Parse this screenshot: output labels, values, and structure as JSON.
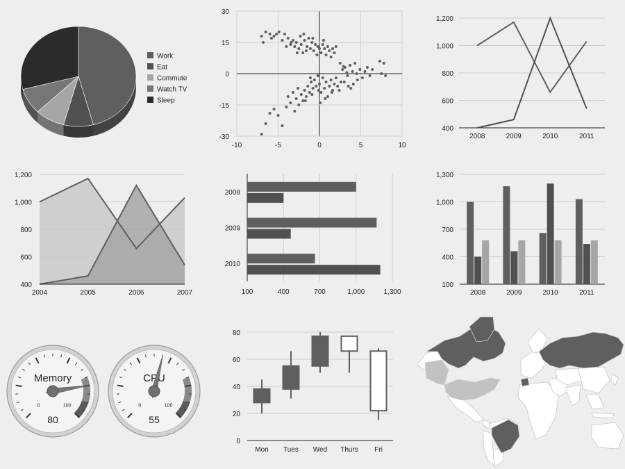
{
  "palette": {
    "series1": "#5f5f5f",
    "series2": "#505050",
    "series3": "#a6a6a6",
    "series4": "#777777",
    "series5": "#2b2b2b",
    "grid": "#cfcfcf",
    "axis": "#222222"
  },
  "chart_data": [
    {
      "id": "pie",
      "type": "pie",
      "style": "3d",
      "legend_position": "right",
      "slices": [
        {
          "label": "Work",
          "value": 11
        },
        {
          "label": "Eat",
          "value": 2
        },
        {
          "label": "Commute",
          "value": 2
        },
        {
          "label": "Watch TV",
          "value": 2
        },
        {
          "label": "Sleep",
          "value": 7
        }
      ]
    },
    {
      "id": "scatter",
      "type": "scatter",
      "xlim": [
        -10,
        10
      ],
      "ylim": [
        -30,
        30
      ],
      "xticks": [
        -10,
        -5,
        0,
        5,
        10
      ],
      "yticks": [
        -30,
        -15,
        0,
        15,
        30
      ],
      "grid": true,
      "points": [
        [
          -7,
          18
        ],
        [
          -6.8,
          15
        ],
        [
          -6.5,
          20
        ],
        [
          -6,
          19
        ],
        [
          -5.8,
          17
        ],
        [
          -5.5,
          18
        ],
        [
          -5.2,
          19
        ],
        [
          -4.9,
          20
        ],
        [
          -4.5,
          16
        ],
        [
          -4.2,
          19
        ],
        [
          -3.8,
          17
        ],
        [
          -3.5,
          14
        ],
        [
          -3.2,
          16
        ],
        [
          -3,
          13
        ],
        [
          -2.8,
          15
        ],
        [
          -2.5,
          12
        ],
        [
          -2.2,
          14
        ],
        [
          -2,
          10
        ],
        [
          -1.8,
          16
        ],
        [
          -1.5,
          13
        ],
        [
          -1.3,
          17
        ],
        [
          -1.1,
          12
        ],
        [
          -0.9,
          15
        ],
        [
          -0.7,
          11
        ],
        [
          -0.5,
          14
        ],
        [
          -0.3,
          9
        ],
        [
          -0.2,
          13
        ],
        [
          0,
          12
        ],
        [
          0.2,
          10
        ],
        [
          0.4,
          14
        ],
        [
          0.6,
          12
        ],
        [
          0.8,
          9
        ],
        [
          1,
          13
        ],
        [
          1.2,
          11
        ],
        [
          1.4,
          8
        ],
        [
          1.6,
          12
        ],
        [
          1.8,
          10
        ],
        [
          -2.3,
          18
        ],
        [
          -3.4,
          15
        ],
        [
          -1.6,
          11
        ],
        [
          -0.8,
          17
        ],
        [
          0.5,
          16
        ],
        [
          2,
          13
        ],
        [
          -4,
          13
        ],
        [
          -2.7,
          10
        ],
        [
          -1.9,
          19
        ],
        [
          2.5,
          5
        ],
        [
          2.8,
          2
        ],
        [
          3.1,
          3
        ],
        [
          3.4,
          -1
        ],
        [
          3.7,
          4
        ],
        [
          4,
          1
        ],
        [
          4.3,
          5
        ],
        [
          4.6,
          -3
        ],
        [
          4.9,
          2
        ],
        [
          5.2,
          -2
        ],
        [
          5.5,
          1
        ],
        [
          5.8,
          3
        ],
        [
          6.1,
          -1
        ],
        [
          6.4,
          2
        ],
        [
          7.3,
          6
        ],
        [
          7.5,
          0
        ],
        [
          7.8,
          5
        ],
        [
          8,
          -1
        ],
        [
          2.6,
          -4
        ],
        [
          3.3,
          0.5
        ],
        [
          4.1,
          -5
        ],
        [
          3.8,
          -7
        ],
        [
          2.9,
          3.5
        ],
        [
          4.5,
          0
        ],
        [
          -7,
          -29
        ],
        [
          -6.5,
          -24
        ],
        [
          -6,
          -19
        ],
        [
          -5.5,
          -17
        ],
        [
          -5,
          -20
        ],
        [
          -4.5,
          -25
        ],
        [
          -4,
          -16
        ],
        [
          -3.5,
          -14
        ],
        [
          -3,
          -18
        ],
        [
          -2.8,
          -12
        ],
        [
          -2.5,
          -15
        ],
        [
          -2.2,
          -10
        ],
        [
          -2,
          -13
        ],
        [
          -1.8,
          -8
        ],
        [
          -1.6,
          -11
        ],
        [
          -1.4,
          -6
        ],
        [
          -1.2,
          -9
        ],
        [
          -1,
          -4
        ],
        [
          -0.8,
          -7
        ],
        [
          -0.6,
          -3
        ],
        [
          -0.4,
          -6
        ],
        [
          -0.2,
          -1
        ],
        [
          0,
          -5
        ],
        [
          0.2,
          -9
        ],
        [
          0.4,
          -2
        ],
        [
          0.6,
          -7
        ],
        [
          0.8,
          -4
        ],
        [
          1,
          -11
        ],
        [
          1.2,
          -6
        ],
        [
          1.4,
          -3
        ],
        [
          1.6,
          -8
        ],
        [
          1.8,
          -5
        ],
        [
          2,
          -2
        ],
        [
          2.2,
          -6
        ],
        [
          -3.2,
          -9
        ],
        [
          -2.6,
          -7
        ],
        [
          -1.7,
          -13
        ],
        [
          -0.9,
          -10
        ],
        [
          0.1,
          -14
        ],
        [
          0.7,
          -12
        ],
        [
          1.5,
          -9
        ],
        [
          2.4,
          -8
        ],
        [
          3,
          -4
        ],
        [
          3.5,
          -6
        ],
        [
          -3.8,
          -11
        ],
        [
          -1.1,
          -2
        ],
        [
          -0.1,
          -8
        ]
      ]
    },
    {
      "id": "line",
      "type": "line",
      "categories": [
        "2008",
        "2009",
        "2010",
        "2011"
      ],
      "series": [
        {
          "values": [
            1000,
            1170,
            660,
            1030
          ]
        },
        {
          "values": [
            400,
            460,
            1200,
            540
          ]
        }
      ],
      "ylim": [
        400,
        1200
      ],
      "yticks": [
        "400",
        "600",
        "800",
        "1,000",
        "1,200"
      ],
      "grid": true
    },
    {
      "id": "area",
      "type": "area",
      "categories": [
        "2004",
        "2005",
        "2006",
        "2007"
      ],
      "series": [
        {
          "values": [
            1000,
            1170,
            660,
            1030
          ]
        },
        {
          "values": [
            400,
            460,
            1120,
            540
          ]
        }
      ],
      "ylim": [
        400,
        1200
      ],
      "yticks": [
        "400",
        "600",
        "800",
        "1,000",
        "1,200"
      ],
      "grid": true
    },
    {
      "id": "hbar",
      "type": "bar",
      "orientation": "horizontal",
      "categories": [
        "2008",
        "2009",
        "2010"
      ],
      "series": [
        {
          "values": [
            1000,
            1170,
            660
          ]
        },
        {
          "values": [
            400,
            460,
            1200
          ]
        }
      ],
      "xlim": [
        100,
        1300
      ],
      "xticks": [
        "100",
        "400",
        "700",
        "1,000",
        "1,300"
      ],
      "grid": true
    },
    {
      "id": "vbar",
      "type": "bar",
      "orientation": "vertical",
      "categories": [
        "2008",
        "2009",
        "2010",
        "2011"
      ],
      "series": [
        {
          "values": [
            1000,
            1170,
            660,
            1030
          ]
        },
        {
          "values": [
            400,
            460,
            1200,
            540
          ]
        },
        {
          "values": [
            580,
            580,
            580,
            580
          ]
        }
      ],
      "ylim": [
        100,
        1300
      ],
      "yticks": [
        "100",
        "400",
        "700",
        "1,000",
        "1,300"
      ],
      "grid": true
    },
    {
      "id": "gauge",
      "type": "gauge",
      "min": 0,
      "max": 100,
      "min_label": "0",
      "max_label": "100",
      "gauges": [
        {
          "label": "Memory",
          "value": 80
        },
        {
          "label": "CPU",
          "value": 55
        }
      ]
    },
    {
      "id": "candlestick",
      "type": "candlestick",
      "categories": [
        "Mon",
        "Tues",
        "Wed",
        "Thurs",
        "Fri"
      ],
      "series": [
        {
          "low": 20,
          "open": 28,
          "close": 38,
          "high": 45
        },
        {
          "low": 31,
          "open": 38,
          "close": 55,
          "high": 66
        },
        {
          "low": 50,
          "open": 55,
          "close": 77,
          "high": 80
        },
        {
          "low": 50,
          "open": 77,
          "close": 66,
          "high": 77
        },
        {
          "low": 15,
          "open": 66,
          "close": 22,
          "high": 68
        }
      ],
      "ylim": [
        0,
        80
      ],
      "yticks": [
        "0",
        "20",
        "40",
        "60",
        "80"
      ],
      "grid": true
    },
    {
      "id": "geo",
      "type": "map",
      "region": "world",
      "shaded_regions": [
        "Canada",
        "Greenland",
        "United States",
        "Russia",
        "Brazil",
        "France"
      ]
    }
  ]
}
